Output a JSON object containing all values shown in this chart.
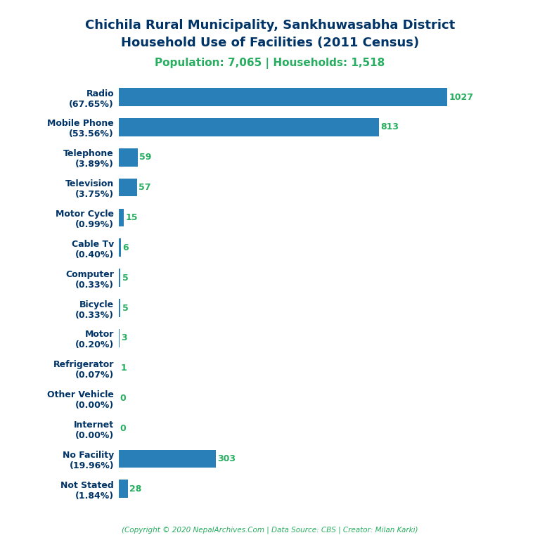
{
  "title_line1": "Chichila Rural Municipality, Sankhuwasabha District",
  "title_line2": "Household Use of Facilities (2011 Census)",
  "subtitle": "Population: 7,065 | Households: 1,518",
  "footer": "(Copyright © 2020 NepalArchives.Com | Data Source: CBS | Creator: Milan Karki)",
  "categories": [
    "Not Stated\n(1.84%)",
    "No Facility\n(19.96%)",
    "Internet\n(0.00%)",
    "Other Vehicle\n(0.00%)",
    "Refrigerator\n(0.07%)",
    "Motor\n(0.20%)",
    "Bicycle\n(0.33%)",
    "Computer\n(0.33%)",
    "Cable Tv\n(0.40%)",
    "Motor Cycle\n(0.99%)",
    "Television\n(3.75%)",
    "Telephone\n(3.89%)",
    "Mobile Phone\n(53.56%)",
    "Radio\n(67.65%)"
  ],
  "values": [
    28,
    303,
    0,
    0,
    1,
    3,
    5,
    5,
    6,
    15,
    57,
    59,
    813,
    1027
  ],
  "bar_color": "#2980b9",
  "title_color": "#003366",
  "subtitle_color": "#27ae60",
  "value_color": "#27ae60",
  "footer_color": "#27ae60",
  "ylabel_fontsize": 9,
  "value_fontsize": 9,
  "title_fontsize": 13,
  "subtitle_fontsize": 11,
  "background_color": "#ffffff"
}
